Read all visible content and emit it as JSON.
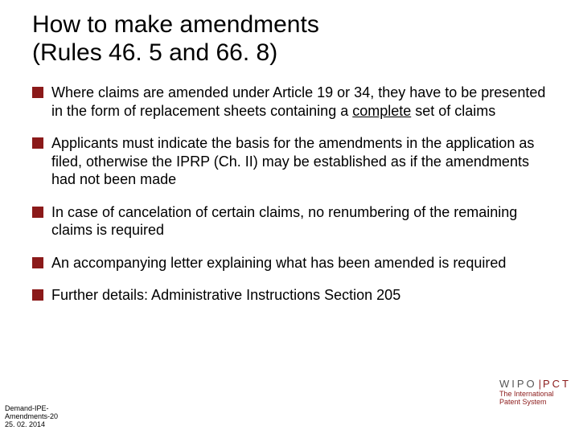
{
  "title_line1": "How to make amendments",
  "title_line2": "(Rules 46. 5 and 66. 8)",
  "bullets": [
    {
      "pre": "Where claims are amended under Article 19 or 34, they have to be presented in the form of replacement sheets containing a ",
      "underlined": "complete",
      "post": " set of claims"
    },
    {
      "pre": "Applicants must indicate the basis for the amendments in the application as filed, otherwise the IPRP (Ch. II) may be established as if the amendments had not been made",
      "underlined": "",
      "post": ""
    },
    {
      "pre": "In case of cancelation of certain claims, no renumbering of the remaining claims is required",
      "underlined": "",
      "post": ""
    },
    {
      "pre": "An accompanying letter explaining what has been amended is required",
      "underlined": "",
      "post": ""
    },
    {
      "pre": "Further details:  Administrative Instructions Section 205",
      "underlined": "",
      "post": ""
    }
  ],
  "footer_left_lines": [
    "Demand-IPE-",
    "Amendments-20",
    "25. 02. 2014"
  ],
  "brand_wipo": "WIPO",
  "brand_pct": "PCT",
  "brand_sub1": "The International",
  "brand_sub2": "Patent System",
  "colors": {
    "accent": "#8b1a1a",
    "text": "#000000",
    "muted": "#555555",
    "bg": "#ffffff"
  }
}
